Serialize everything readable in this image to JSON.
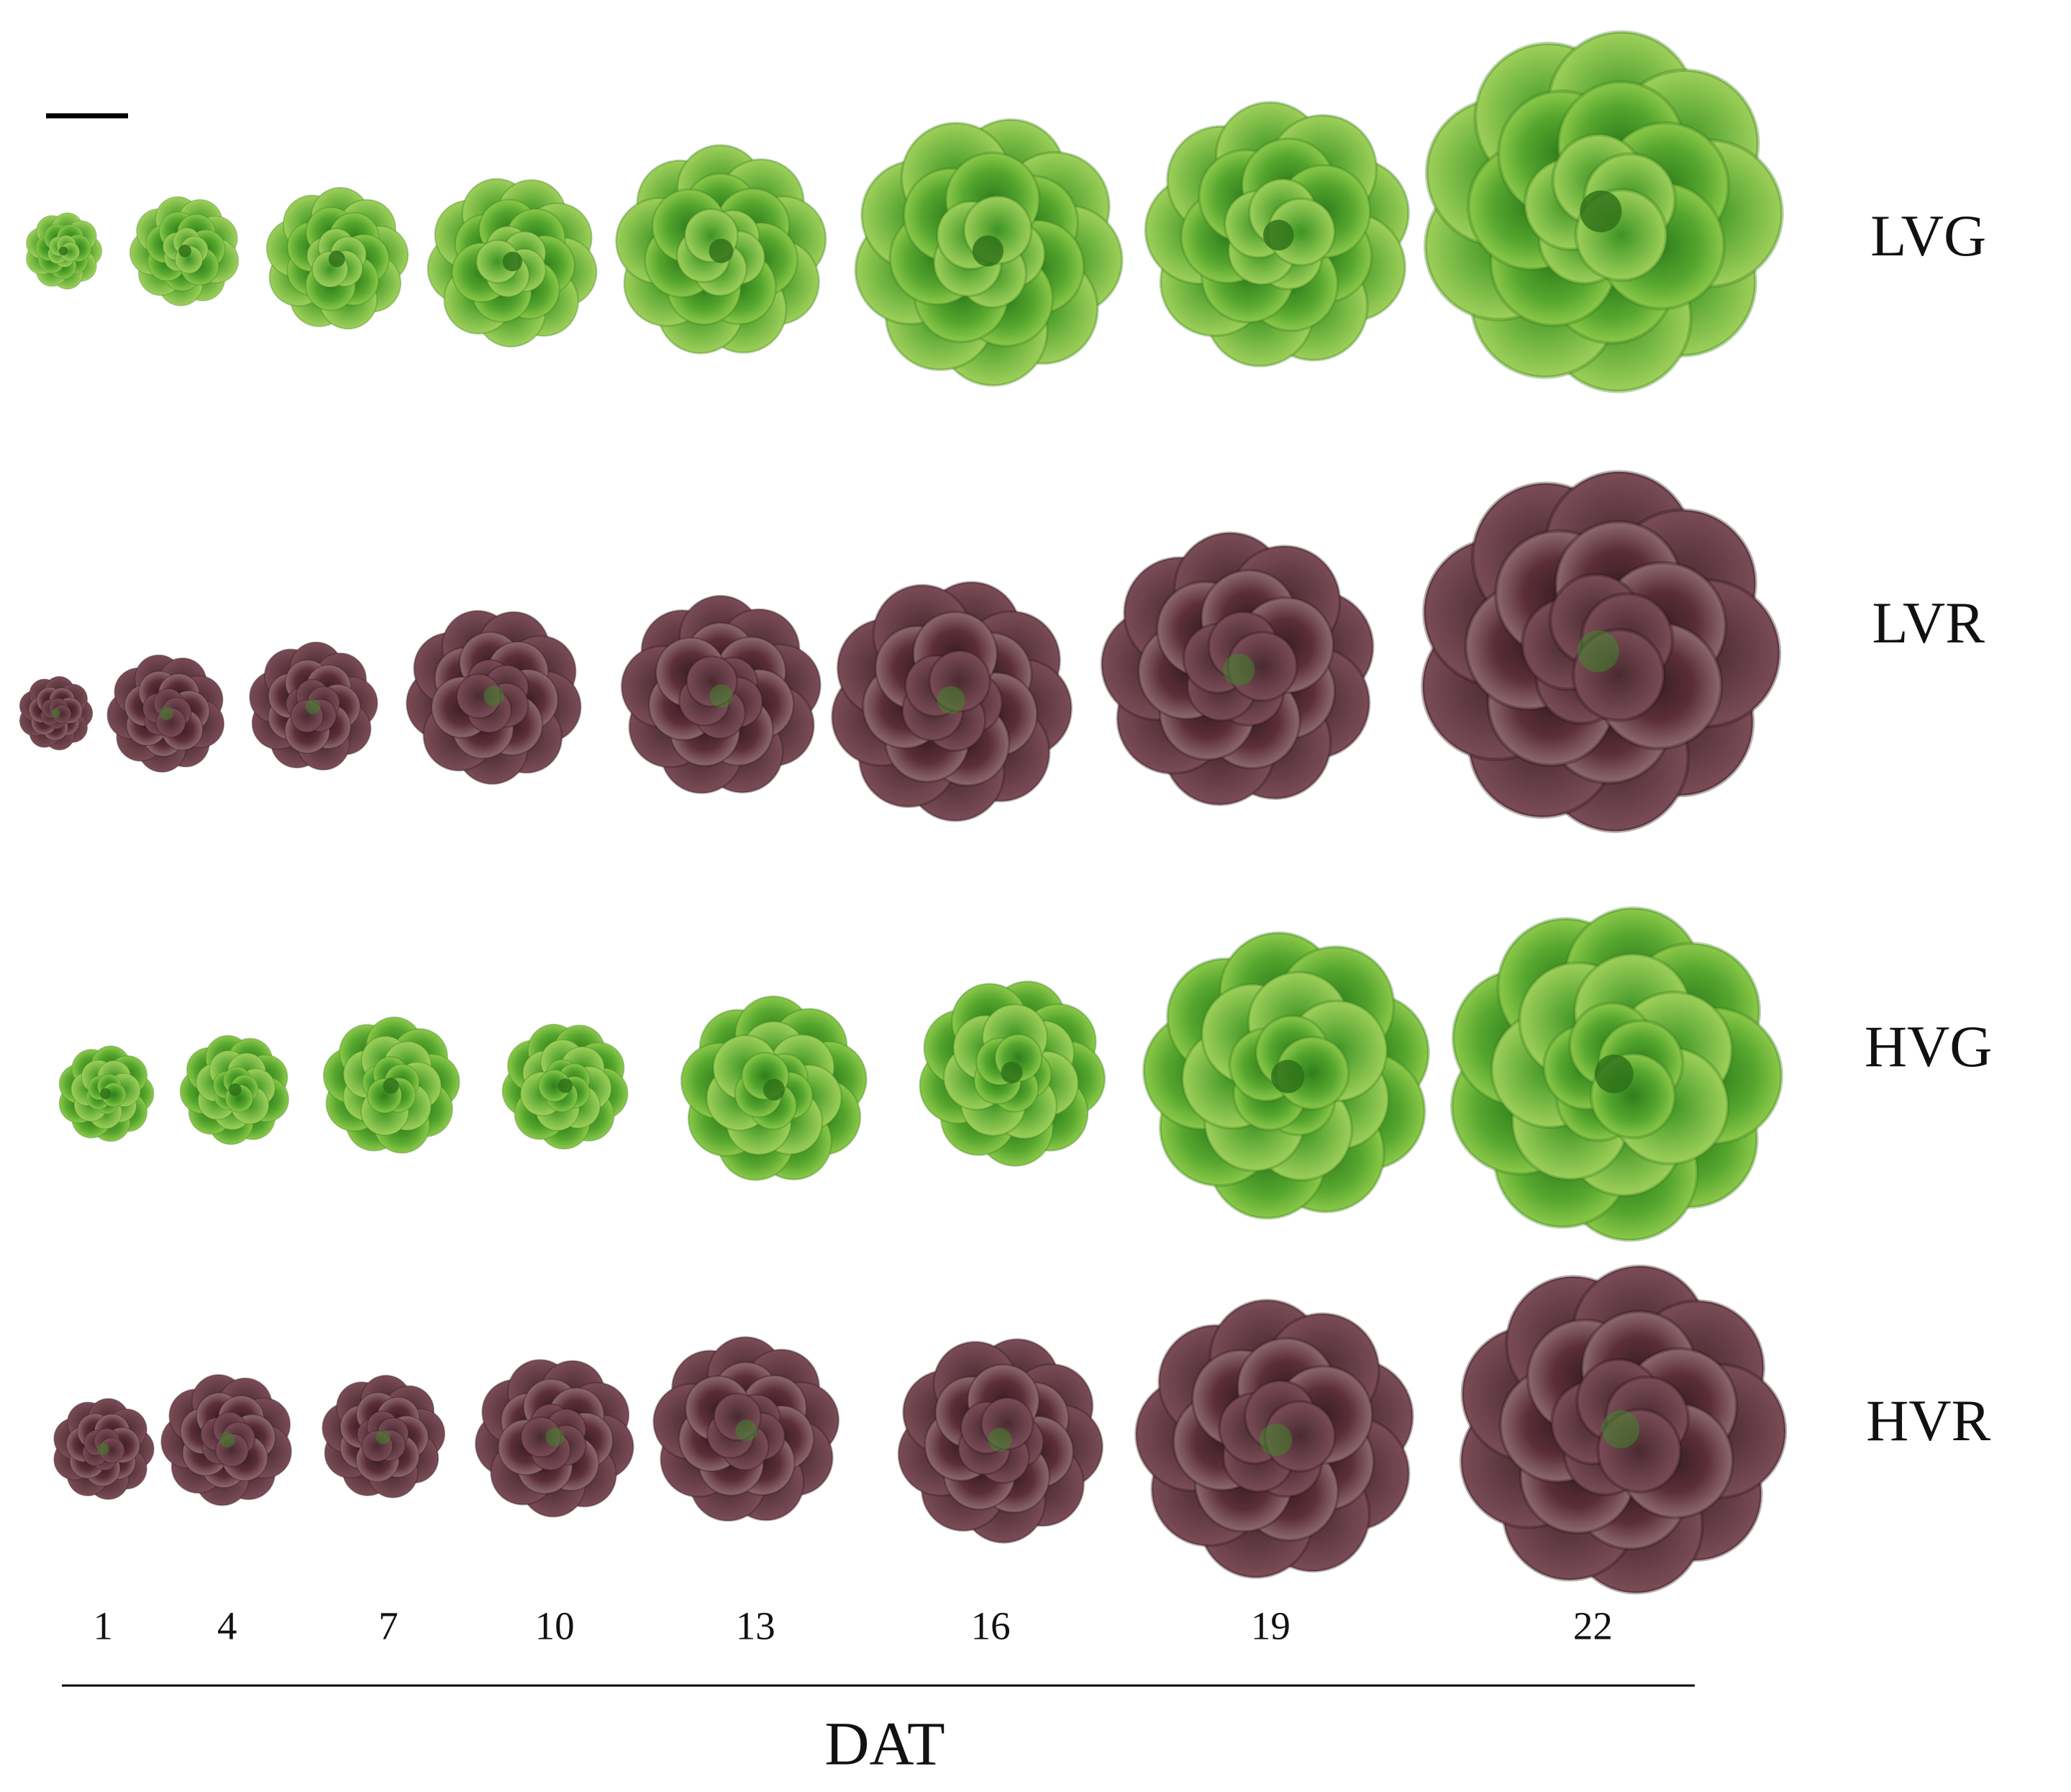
{
  "row_labels": [
    "LVG",
    "LVR",
    "HVG",
    "HVR"
  ],
  "day_labels": [
    1,
    4,
    7,
    10,
    13,
    16,
    19,
    22
  ],
  "axis_label": "DAT"
}
